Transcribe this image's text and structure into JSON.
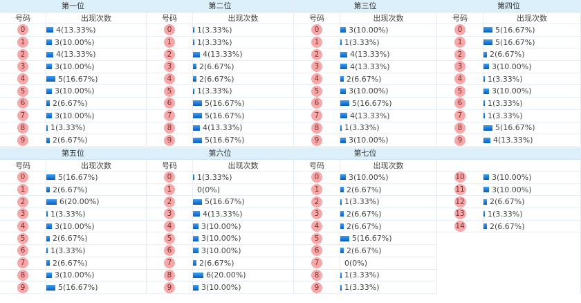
{
  "col_number": "号码",
  "col_count": "出现次数",
  "colors": {
    "header_bg": "#dcf0fc",
    "ball": "#f7a7a7",
    "bar": "#1673dc"
  },
  "sections": [
    {
      "groups": [
        {
          "title": "第一位",
          "items": [
            {
              "num": "0",
              "count": 4,
              "label": "4(13.33%)"
            },
            {
              "num": "1",
              "count": 3,
              "label": "3(10.00%)"
            },
            {
              "num": "2",
              "count": 4,
              "label": "4(13.33%)"
            },
            {
              "num": "3",
              "count": 3,
              "label": "3(10.00%)"
            },
            {
              "num": "4",
              "count": 5,
              "label": "5(16.67%)"
            },
            {
              "num": "5",
              "count": 3,
              "label": "3(10.00%)"
            },
            {
              "num": "6",
              "count": 2,
              "label": "2(6.67%)"
            },
            {
              "num": "7",
              "count": 3,
              "label": "3(10.00%)"
            },
            {
              "num": "8",
              "count": 1,
              "label": "1(3.33%)"
            },
            {
              "num": "9",
              "count": 2,
              "label": "2(6.67%)"
            }
          ]
        },
        {
          "title": "第二位",
          "items": [
            {
              "num": "0",
              "count": 1,
              "label": "1(3.33%)"
            },
            {
              "num": "1",
              "count": 1,
              "label": "1(3.33%)"
            },
            {
              "num": "2",
              "count": 4,
              "label": "4(13.33%)"
            },
            {
              "num": "3",
              "count": 2,
              "label": "2(6.67%)"
            },
            {
              "num": "4",
              "count": 2,
              "label": "2(6.67%)"
            },
            {
              "num": "5",
              "count": 1,
              "label": "1(3.33%)"
            },
            {
              "num": "6",
              "count": 5,
              "label": "5(16.67%)"
            },
            {
              "num": "7",
              "count": 5,
              "label": "5(16.67%)"
            },
            {
              "num": "8",
              "count": 4,
              "label": "4(13.33%)"
            },
            {
              "num": "9",
              "count": 5,
              "label": "5(16.67%)"
            }
          ]
        },
        {
          "title": "第三位",
          "items": [
            {
              "num": "0",
              "count": 3,
              "label": "3(10.00%)"
            },
            {
              "num": "1",
              "count": 1,
              "label": "1(3.33%)"
            },
            {
              "num": "2",
              "count": 4,
              "label": "4(13.33%)"
            },
            {
              "num": "3",
              "count": 4,
              "label": "4(13.33%)"
            },
            {
              "num": "4",
              "count": 2,
              "label": "2(6.67%)"
            },
            {
              "num": "5",
              "count": 3,
              "label": "3(10.00%)"
            },
            {
              "num": "6",
              "count": 5,
              "label": "5(16.67%)"
            },
            {
              "num": "7",
              "count": 4,
              "label": "4(13.33%)"
            },
            {
              "num": "8",
              "count": 1,
              "label": "1(3.33%)"
            },
            {
              "num": "9",
              "count": 3,
              "label": "3(10.00%)"
            }
          ]
        },
        {
          "title": "第四位",
          "items": [
            {
              "num": "0",
              "count": 5,
              "label": "5(16.67%)"
            },
            {
              "num": "1",
              "count": 5,
              "label": "5(16.67%)"
            },
            {
              "num": "2",
              "count": 2,
              "label": "2(6.67%)"
            },
            {
              "num": "3",
              "count": 3,
              "label": "3(10.00%)"
            },
            {
              "num": "4",
              "count": 1,
              "label": "1(3.33%)"
            },
            {
              "num": "5",
              "count": 3,
              "label": "3(10.00%)"
            },
            {
              "num": "6",
              "count": 1,
              "label": "1(3.33%)"
            },
            {
              "num": "7",
              "count": 1,
              "label": "1(3.33%)"
            },
            {
              "num": "8",
              "count": 5,
              "label": "5(16.67%)"
            },
            {
              "num": "9",
              "count": 4,
              "label": "4(13.33%)"
            }
          ]
        }
      ]
    },
    {
      "groups": [
        {
          "title": "第五位",
          "items": [
            {
              "num": "0",
              "count": 5,
              "label": "5(16.67%)"
            },
            {
              "num": "1",
              "count": 2,
              "label": "2(6.67%)"
            },
            {
              "num": "2",
              "count": 6,
              "label": "6(20.00%)"
            },
            {
              "num": "3",
              "count": 1,
              "label": "1(3.33%)"
            },
            {
              "num": "4",
              "count": 3,
              "label": "3(10.00%)"
            },
            {
              "num": "5",
              "count": 2,
              "label": "2(6.67%)"
            },
            {
              "num": "6",
              "count": 1,
              "label": "1(3.33%)"
            },
            {
              "num": "7",
              "count": 2,
              "label": "2(6.67%)"
            },
            {
              "num": "8",
              "count": 3,
              "label": "3(10.00%)"
            },
            {
              "num": "9",
              "count": 5,
              "label": "5(16.67%)"
            }
          ]
        },
        {
          "title": "第六位",
          "items": [
            {
              "num": "0",
              "count": 1,
              "label": "1(3.33%)"
            },
            {
              "num": "1",
              "count": 0,
              "label": "0(0%)"
            },
            {
              "num": "2",
              "count": 5,
              "label": "5(16.67%)"
            },
            {
              "num": "3",
              "count": 4,
              "label": "4(13.33%)"
            },
            {
              "num": "4",
              "count": 3,
              "label": "3(10.00%)"
            },
            {
              "num": "5",
              "count": 3,
              "label": "3(10.00%)"
            },
            {
              "num": "6",
              "count": 3,
              "label": "3(10.00%)"
            },
            {
              "num": "7",
              "count": 2,
              "label": "2(6.67%)"
            },
            {
              "num": "8",
              "count": 6,
              "label": "6(20.00%)"
            },
            {
              "num": "9",
              "count": 3,
              "label": "3(10.00%)"
            }
          ]
        },
        {
          "title": "第七位",
          "items": [
            {
              "num": "0",
              "count": 3,
              "label": "3(10.00%)"
            },
            {
              "num": "1",
              "count": 2,
              "label": "2(6.67%)"
            },
            {
              "num": "2",
              "count": 1,
              "label": "1(3.33%)"
            },
            {
              "num": "3",
              "count": 2,
              "label": "2(6.67%)"
            },
            {
              "num": "4",
              "count": 2,
              "label": "2(6.67%)"
            },
            {
              "num": "5",
              "count": 5,
              "label": "5(16.67%)"
            },
            {
              "num": "6",
              "count": 2,
              "label": "2(6.67%)"
            },
            {
              "num": "7",
              "count": 0,
              "label": "0(0%)"
            },
            {
              "num": "8",
              "count": 1,
              "label": "1(3.33%)"
            },
            {
              "num": "9",
              "count": 1,
              "label": "1(3.33%)"
            }
          ]
        },
        {
          "title": "",
          "no_subheader": true,
          "items": [
            {
              "num": "10",
              "count": 3,
              "label": "3(10.00%)"
            },
            {
              "num": "11",
              "count": 3,
              "label": "3(10.00%)"
            },
            {
              "num": "12",
              "count": 2,
              "label": "2(6.67%)"
            },
            {
              "num": "13",
              "count": 1,
              "label": "1(3.33%)"
            },
            {
              "num": "14",
              "count": 2,
              "label": "2(6.67%)"
            }
          ]
        }
      ]
    }
  ]
}
